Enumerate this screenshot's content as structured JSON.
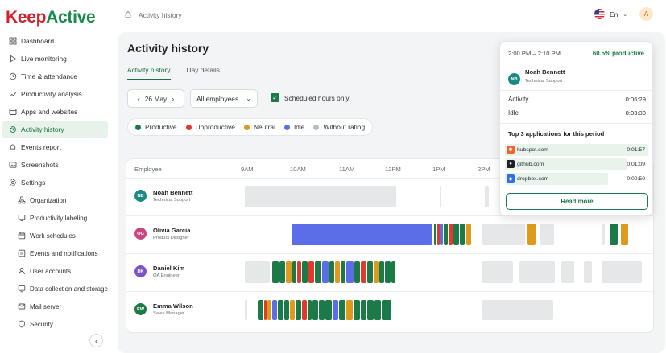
{
  "brand": {
    "part1": "Keep",
    "part2": "Active"
  },
  "sidebar": {
    "items": [
      {
        "label": "Dashboard",
        "icon": "grid-icon"
      },
      {
        "label": "Live monitoring",
        "icon": "play-icon"
      },
      {
        "label": "Time & attendance",
        "icon": "clock-icon"
      },
      {
        "label": "Productivity analysis",
        "icon": "chart-icon"
      },
      {
        "label": "Apps and websites",
        "icon": "apps-icon"
      },
      {
        "label": "Activity history",
        "icon": "history-icon",
        "active": true
      },
      {
        "label": "Events report",
        "icon": "bell-icon"
      },
      {
        "label": "Screenshots",
        "icon": "image-icon"
      },
      {
        "label": "Settings",
        "icon": "gear-icon"
      }
    ],
    "settings_items": [
      {
        "label": "Organization",
        "icon": "org-icon"
      },
      {
        "label": "Productivity labeling",
        "icon": "tag-icon"
      },
      {
        "label": "Work schedules",
        "icon": "calendar-icon"
      },
      {
        "label": "Events and notifications",
        "icon": "notification-icon"
      },
      {
        "label": "User accounts",
        "icon": "user-icon"
      },
      {
        "label": "Data collection and storage",
        "icon": "database-icon"
      },
      {
        "label": "Mail server",
        "icon": "mail-icon"
      },
      {
        "label": "Security",
        "icon": "shield-icon"
      }
    ],
    "collapse_glyph": "‹"
  },
  "header": {
    "breadcrumb": "Activity history",
    "language": "En",
    "avatar_initial": "A"
  },
  "page": {
    "title": "Activity history",
    "tabs": [
      {
        "label": "Activity history",
        "active": true
      },
      {
        "label": "Day details",
        "active": false
      }
    ],
    "date": "26 May",
    "employee_filter": "All employees",
    "scheduled_hours_label": "Scheduled hours only",
    "scheduled_hours_checked": true
  },
  "legend": [
    {
      "label": "Productive",
      "color": "#1b7a47"
    },
    {
      "label": "Unproductive",
      "color": "#e0392d"
    },
    {
      "label": "Neutral",
      "color": "#dd9a1c"
    },
    {
      "label": "Idle",
      "color": "#5b6ee8"
    },
    {
      "label": "Without rating",
      "color": "#b8bcc1"
    }
  ],
  "timeline": {
    "employee_header": "Employee",
    "hours": [
      "9AM",
      "10AM",
      "11AM",
      "12PM",
      "1PM",
      "2PM"
    ],
    "employees": [
      {
        "initials": "NB",
        "name": "Noah Bennett",
        "role": "Technical Support",
        "avatar_color": "#1b8a82"
      },
      {
        "initials": "OG",
        "name": "Olivia Garcia",
        "role": "Product Designer",
        "avatar_color": "#c8457f"
      },
      {
        "initials": "DK",
        "name": "Daniel Kim",
        "role": "QA Engineer",
        "avatar_color": "#7a55c9"
      },
      {
        "initials": "EW",
        "name": "Emma Wilson",
        "role": "Sales Manager",
        "avatar_color": "#1b7a47"
      }
    ]
  },
  "popup": {
    "time_range": "2:00 PM – 2:10 PM",
    "productivity": "60.5% productive",
    "employee": {
      "initials": "NB",
      "name": "Noah Bennett",
      "role": "Technical Support"
    },
    "activity_label": "Activity",
    "activity_value": "0:06:29",
    "idle_label": "Idle",
    "idle_value": "0:03:30",
    "apps_title": "Top 3 applications for this period",
    "apps": [
      {
        "name": "hubspot.com",
        "time": "0:01:57",
        "icon": "hubspot-icon",
        "icon_color": "#f0632c",
        "share": 1.0
      },
      {
        "name": "github.com",
        "time": "0:01:09",
        "icon": "github-icon",
        "icon_color": "#1c1f23",
        "share": 0.85
      },
      {
        "name": "dropbox.com",
        "time": "0:00:50",
        "icon": "dropbox-icon",
        "icon_color": "#2f6fe0",
        "share": 0.72
      }
    ],
    "read_more": "Read more"
  }
}
